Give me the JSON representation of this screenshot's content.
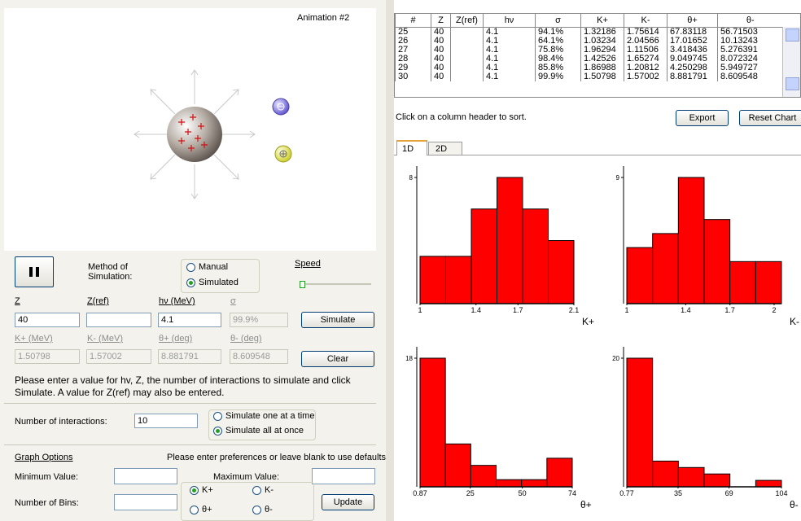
{
  "animation": {
    "title": "Animation #2"
  },
  "controls": {
    "method_label": "Method of Simulation:",
    "manual": "Manual",
    "simulated": "Simulated",
    "speed": "Speed"
  },
  "inputs": {
    "labels": [
      "Z",
      "Z(ref)",
      "hν (MeV)",
      "σ"
    ],
    "z": "40",
    "hv": "4.1",
    "sigma": "99.9%",
    "simulate": "Simulate"
  },
  "outputs": {
    "labels": [
      "K+ (MeV)",
      "K- (MeV)",
      "θ+ (deg)",
      "θ- (deg)"
    ],
    "values": [
      "1.50798",
      "1.57002",
      "8.881791",
      "8.609548"
    ],
    "clear": "Clear"
  },
  "instructions": "Please enter a value for hv, Z, the number of interactions to simulate and click Simulate.  A value for Z(ref) may also be entered.",
  "interactions": {
    "label": "Number of interactions:",
    "value": "10",
    "options": [
      "Simulate one at a time",
      "Simulate all at once"
    ]
  },
  "graph_options": {
    "title": "Graph Options",
    "hint": "Please enter preferences or leave blank to use defaults",
    "min_label": "Minimum Value:",
    "max_label": "Maximum Value:",
    "bins_label": "Number of Bins:",
    "options": [
      "K+",
      "K-",
      "θ+",
      "θ-"
    ],
    "update": "Update"
  },
  "table": {
    "headers": [
      "#",
      "Z",
      "Z(ref)",
      "hν",
      "σ",
      "K+",
      "K-",
      "θ+",
      "θ-"
    ],
    "rows": [
      [
        25,
        40,
        null,
        4.1,
        "94.1%",
        1.32186,
        1.75614,
        67.83118,
        56.71503
      ],
      [
        26,
        40,
        null,
        4.1,
        "64.1%",
        1.03234,
        2.04566,
        17.01652,
        10.13243
      ],
      [
        27,
        40,
        null,
        4.1,
        "75.8%",
        1.96294,
        1.11506,
        3.418436,
        5.276391
      ],
      [
        28,
        40,
        null,
        4.1,
        "98.4%",
        1.42526,
        1.65274,
        9.049745,
        8.072324
      ],
      [
        29,
        40,
        null,
        4.1,
        "85.8%",
        1.86988,
        1.20812,
        4.250298,
        5.949727
      ],
      [
        30,
        40,
        null,
        4.1,
        "99.9%",
        1.50798,
        1.57002,
        8.881791,
        8.609548
      ]
    ],
    "sort_hint": "Click on a column header to sort.",
    "export": "Export",
    "reset": "Reset Chart"
  },
  "tabs": [
    "1D",
    "2D"
  ],
  "chart_data": [
    {
      "type": "histogram",
      "x_label": "K+",
      "bins": [
        1,
        1.1833,
        1.3667,
        1.55,
        1.7333,
        1.9167,
        2.1
      ],
      "values": [
        3,
        3,
        6,
        8,
        6,
        4
      ],
      "color": "#ff0000",
      "xlim": [
        1,
        2.1
      ],
      "xticks": [
        1,
        1.4,
        1.7,
        2.1
      ],
      "ylim": [
        0,
        8
      ],
      "yticks": [
        8
      ]
    },
    {
      "type": "histogram",
      "x_label": "K-",
      "bins": [
        1,
        1.175,
        1.35,
        1.525,
        1.7,
        1.875,
        2.05
      ],
      "values": [
        4,
        5,
        9,
        6,
        3,
        3
      ],
      "color": "#ff0000",
      "xlim": [
        1,
        2.05
      ],
      "xticks": [
        1,
        1.4,
        1.7,
        2
      ],
      "ylim": [
        0,
        9
      ],
      "yticks": [
        9
      ]
    },
    {
      "type": "histogram",
      "x_label": "θ+",
      "bins": [
        0.87,
        13.06,
        25.24,
        37.43,
        49.62,
        61.81,
        74
      ],
      "values": [
        18,
        6,
        3,
        1,
        1,
        4
      ],
      "color": "#ff0000",
      "xlim": [
        0.87,
        74
      ],
      "xticks": [
        0.87,
        25,
        50,
        74
      ],
      "ylim": [
        0,
        18
      ],
      "yticks": [
        18
      ]
    },
    {
      "type": "histogram",
      "x_label": "θ-",
      "bins": [
        0.77,
        17.98,
        35.19,
        52.39,
        69.6,
        86.81,
        104
      ],
      "values": [
        20,
        4,
        3,
        2,
        0,
        1
      ],
      "color": "#ff0000",
      "xlim": [
        0.77,
        104
      ],
      "xticks": [
        0.77,
        35,
        69,
        104
      ],
      "ylim": [
        0,
        20
      ],
      "yticks": [
        20
      ]
    }
  ]
}
